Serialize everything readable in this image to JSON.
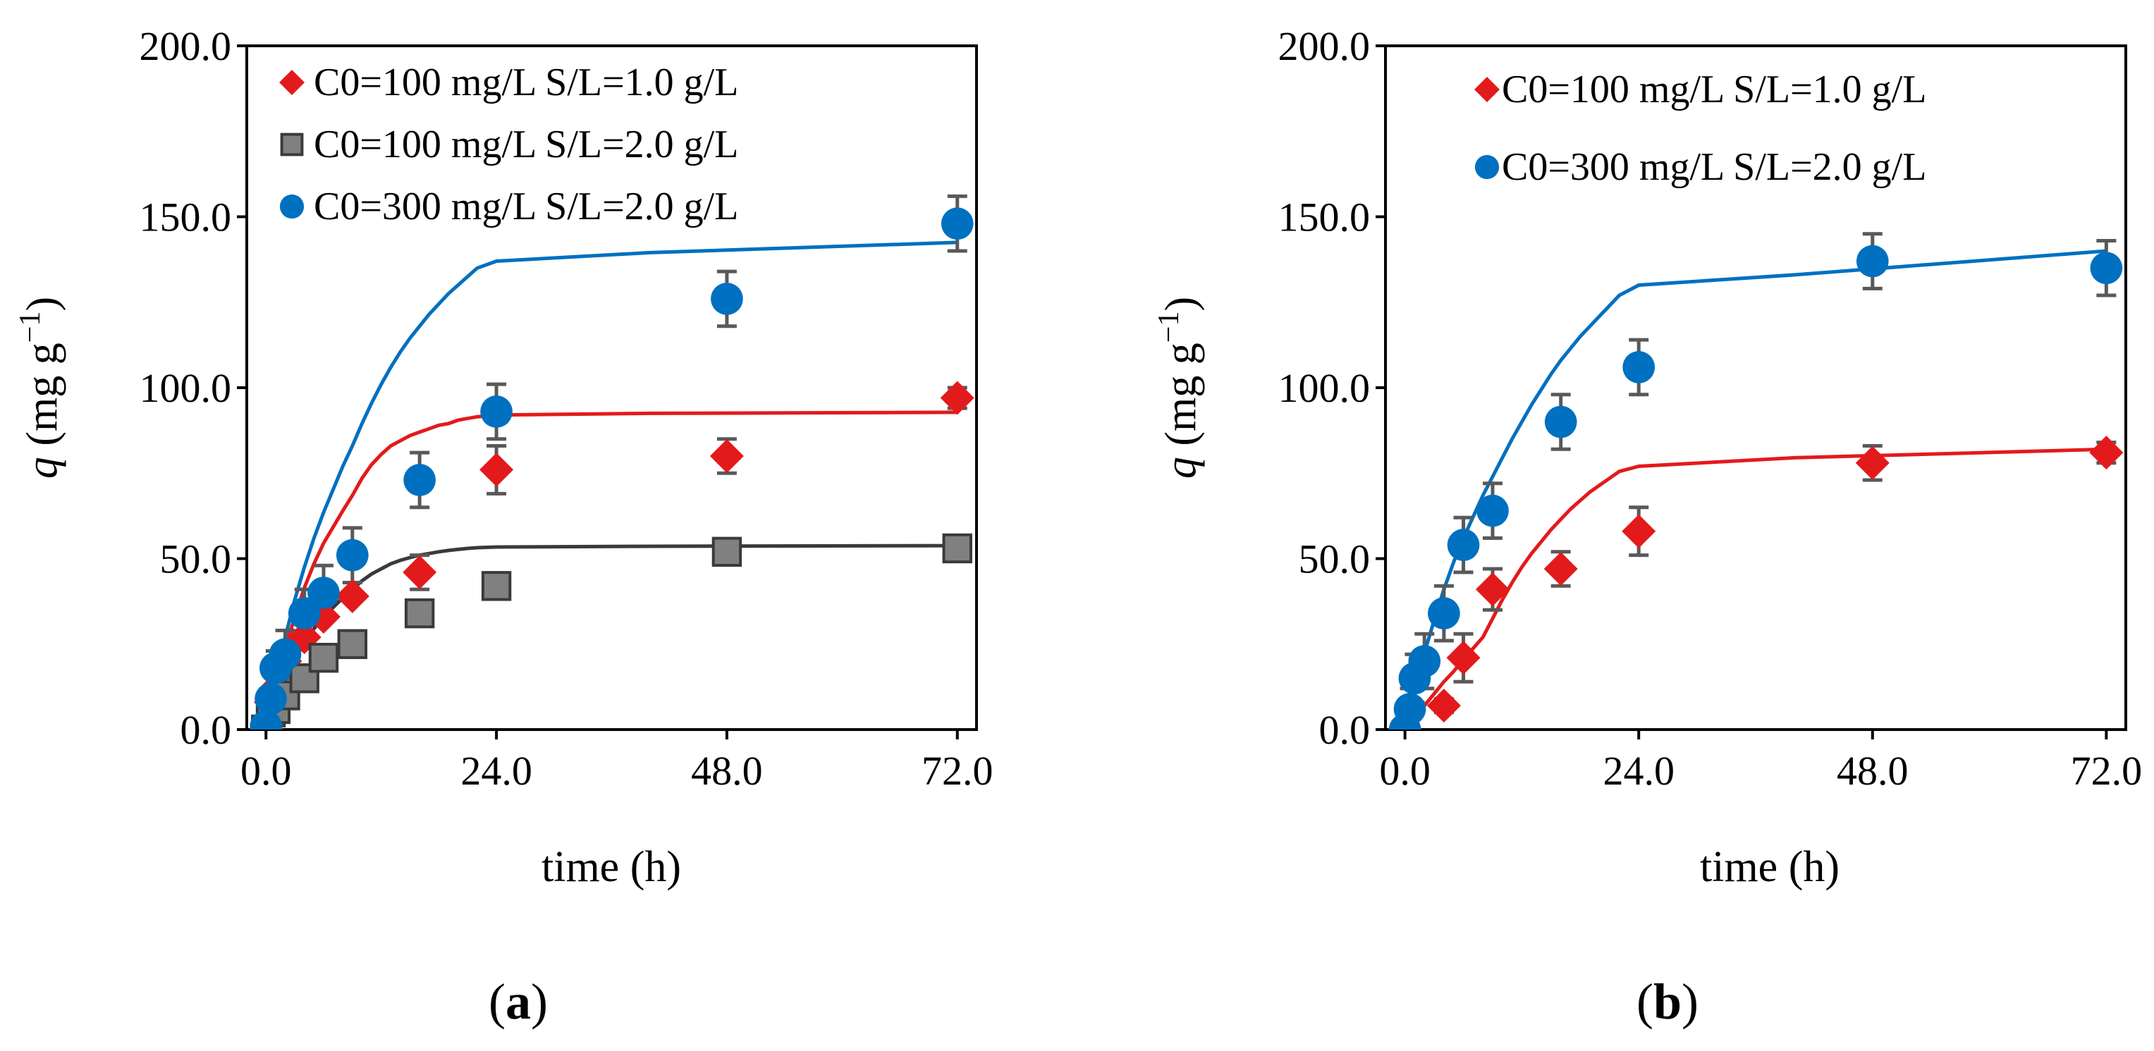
{
  "chart_data": [
    {
      "type": "scatter",
      "panel_label": "a",
      "xlabel": "time (h)",
      "ylabel_symbol": "q",
      "ylabel_units": "mg g",
      "ylabel_exp": "−1",
      "xlim": [
        -2,
        74
      ],
      "ylim": [
        0,
        200
      ],
      "xticks": [
        0,
        24,
        48,
        72
      ],
      "yticks": [
        0,
        50,
        100,
        150,
        200
      ],
      "xtick_labels": [
        "0.0",
        "24.0",
        "48.0",
        "72.0"
      ],
      "ytick_labels": [
        "0.0",
        "50.0",
        "100.0",
        "150.0",
        "200.0"
      ],
      "legend_position": "top-left",
      "series": [
        {
          "name": "C0=100 mg/L S/L=1.0 g/L",
          "marker": "diamond",
          "color": "#e31a1c",
          "fit_color": "#e31a1c",
          "x": [
            0,
            0.5,
            1,
            2,
            4,
            6,
            9,
            16,
            24,
            48,
            72
          ],
          "y": [
            0,
            8,
            12,
            20,
            27,
            33,
            39,
            46,
            76,
            80,
            97
          ],
          "err": [
            0,
            0,
            0,
            0,
            0,
            0,
            0,
            5,
            7,
            5,
            3
          ],
          "fit_y": [
            0,
            12.5,
            23.5,
            33.0,
            41.5,
            48.5,
            54.5,
            64.0,
            68.5,
            73.5,
            77.5,
            80.5,
            83.0,
            84.5,
            86.0,
            87.0,
            88.0,
            89.0,
            89.5,
            90.5,
            91.0,
            91.5,
            92.0,
            92.5,
            92.8
          ]
        },
        {
          "name": "C0=100 mg/L S/L=2.0 g/L",
          "marker": "square",
          "color": "#808080",
          "fit_color": "#3a3a3a",
          "x": [
            0,
            0.5,
            1,
            2,
            4,
            6,
            9,
            16,
            24,
            48,
            72
          ],
          "y": [
            0,
            5,
            6,
            10,
            15,
            21,
            25,
            34,
            42,
            52,
            53
          ],
          "err": [
            0,
            0,
            0,
            0,
            0,
            0,
            0,
            0,
            0,
            0,
            0
          ],
          "fit_y": [
            0,
            8.0,
            14.5,
            20.5,
            25.5,
            29.5,
            33.0,
            38.5,
            41.0,
            43.5,
            45.5,
            47.0,
            48.5,
            49.5,
            50.3,
            51.0,
            51.5,
            52.0,
            52.4,
            52.7,
            53.0,
            53.2,
            53.4,
            53.6,
            53.8
          ]
        },
        {
          "name": "C0=300 mg/L  S/L=2.0 g/L",
          "marker": "circle",
          "color": "#0070c0",
          "fit_color": "#0070c0",
          "x": [
            0,
            0.5,
            1,
            2,
            4,
            6,
            9,
            16,
            24,
            48,
            72
          ],
          "y": [
            1,
            9,
            18,
            22,
            34,
            40,
            51,
            73,
            93,
            126,
            148
          ],
          "err": [
            0,
            3,
            5,
            7,
            7,
            8,
            8,
            8,
            8,
            8,
            8
          ],
          "fit_y": [
            0,
            14.0,
            27.0,
            38.0,
            47.5,
            56.0,
            63.5,
            77.0,
            83.0,
            89.5,
            95.5,
            101.0,
            106.0,
            110.5,
            114.5,
            118.0,
            121.5,
            124.5,
            127.5,
            130.0,
            132.5,
            135.0,
            137.0,
            139.5,
            142.5
          ]
        }
      ]
    },
    {
      "type": "scatter",
      "panel_label": "b",
      "xlabel": "time (h)",
      "ylabel_symbol": "q",
      "ylabel_units": "mg g",
      "ylabel_exp": "−1",
      "xlim": [
        -2,
        74
      ],
      "ylim": [
        0,
        200
      ],
      "xticks": [
        0,
        24,
        48,
        72
      ],
      "yticks": [
        0,
        50,
        100,
        150,
        200
      ],
      "xtick_labels": [
        "0.0",
        "24.0",
        "48.0",
        "72.0"
      ],
      "ytick_labels": [
        "0.0",
        "50.0",
        "100.0",
        "150.0",
        "200.0"
      ],
      "legend_position": "top-left",
      "series": [
        {
          "name": "C0=100 mg/L S/L=1.0 g/L",
          "marker": "diamond",
          "color": "#e31a1c",
          "fit_color": "#e31a1c",
          "x": [
            0,
            4,
            6,
            9,
            16,
            24,
            48,
            72
          ],
          "y": [
            0,
            7,
            21,
            41,
            47,
            58,
            78,
            81
          ],
          "err": [
            0,
            2,
            7,
            6,
            5,
            7,
            5,
            3
          ],
          "fit_y": [
            0,
            3.5,
            7.0,
            10.5,
            14.0,
            17.0,
            20.5,
            27.0,
            32.5,
            38.0,
            43.0,
            47.5,
            51.5,
            55.0,
            58.5,
            61.5,
            64.5,
            67.0,
            69.5,
            71.5,
            73.5,
            75.5,
            77.0,
            79.5,
            82.0
          ]
        },
        {
          "name": "C0=300 mg/L  S/L=2.0 g/L",
          "marker": "circle",
          "color": "#0070c0",
          "fit_color": "#0070c0",
          "x": [
            0,
            0.5,
            1,
            2,
            4,
            6,
            9,
            16,
            24,
            48,
            72
          ],
          "y": [
            0,
            6,
            15,
            20,
            34,
            54,
            64,
            90,
            106,
            137,
            135
          ],
          "err": [
            0,
            6,
            7,
            8,
            8,
            8,
            8,
            8,
            8,
            8,
            8
          ],
          "fit_y": [
            0,
            11.5,
            22.5,
            32.0,
            41.0,
            49.0,
            56.0,
            68.5,
            74.0,
            79.5,
            85.0,
            90.0,
            95.0,
            99.5,
            104.0,
            108.0,
            111.5,
            115.0,
            118.0,
            121.0,
            124.0,
            127.0,
            130.0,
            133.0,
            140.0
          ]
        }
      ]
    }
  ],
  "fit_x": [
    0,
    1,
    2,
    3,
    4,
    5,
    6,
    8,
    9,
    10,
    11,
    12,
    13,
    14,
    15,
    16,
    17,
    18,
    19,
    20,
    21,
    22,
    24,
    40,
    72
  ]
}
